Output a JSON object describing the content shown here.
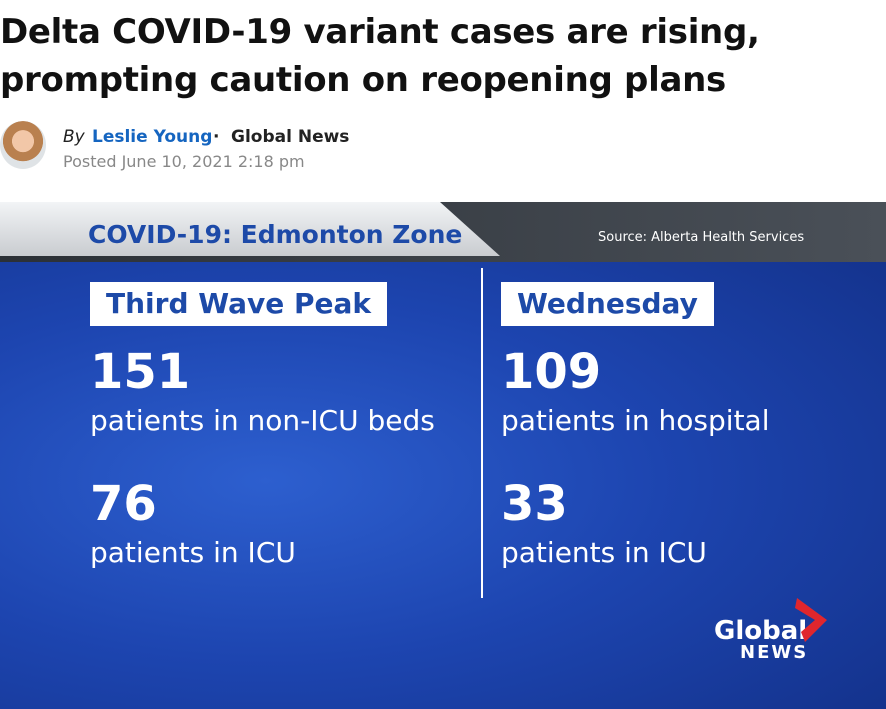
{
  "article": {
    "headline": "Delta COVID-19 variant cases are rising, prompting caution on reopening plans",
    "byline": {
      "by": "By",
      "author": "Leslie Young",
      "separator": "·",
      "outlet": "Global News",
      "posted": "Posted June 10, 2021 2:18 pm"
    }
  },
  "graphic": {
    "title": "COVID-19: Edmonton Zone",
    "source": "Source: Alberta Health Services",
    "columns": [
      {
        "heading": "Third Wave Peak",
        "stats": [
          {
            "value": 151,
            "label": "patients in non-ICU beds"
          },
          {
            "value": 76,
            "label": "patients in ICU"
          }
        ]
      },
      {
        "heading": "Wednesday",
        "stats": [
          {
            "value": 109,
            "label": "patients in hospital"
          },
          {
            "value": 33,
            "label": "patients in ICU"
          }
        ]
      }
    ],
    "logo": {
      "line1": "Global",
      "line2": "NEWS"
    }
  }
}
